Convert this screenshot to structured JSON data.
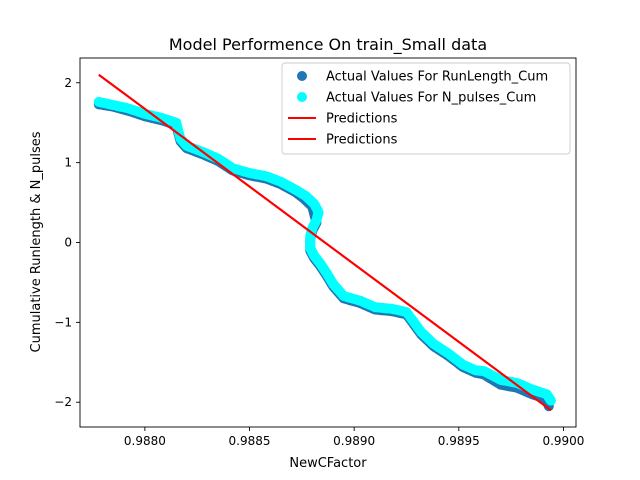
{
  "chart_data": {
    "type": "scatter",
    "title": "Model Performence On train_Small data",
    "xlabel": "NewCFactor",
    "ylabel": "Cumulative Runlength & N_pulses",
    "xlim": [
      0.98769,
      0.99006
    ],
    "ylim": [
      -2.31,
      2.31
    ],
    "xticks": [
      0.988,
      0.9885,
      0.989,
      0.9895,
      0.99
    ],
    "xtick_labels": [
      "0.9880",
      "0.9885",
      "0.9890",
      "0.9895",
      "0.9900"
    ],
    "yticks": [
      -2,
      -1,
      0,
      1,
      2
    ],
    "ytick_labels": [
      "−2",
      "−1",
      "0",
      "1",
      "2"
    ],
    "grid": false,
    "legend_position": "top-right",
    "series": [
      {
        "name": "Actual Values For RunLength_Cum",
        "kind": "scatter",
        "color": "#1f77b4",
        "x": [
          0.98778,
          0.98785,
          0.98792,
          0.988,
          0.98808,
          0.98815,
          0.98817,
          0.9882,
          0.98828,
          0.98835,
          0.98842,
          0.9885,
          0.98858,
          0.98865,
          0.98872,
          0.98876,
          0.9888,
          0.98881,
          0.98882,
          0.9888,
          0.98879,
          0.98879,
          0.98881,
          0.98884,
          0.98887,
          0.9889,
          0.98895,
          0.98903,
          0.9891,
          0.98918,
          0.98925,
          0.98932,
          0.98938,
          0.98945,
          0.98952,
          0.98958,
          0.98962,
          0.98965,
          0.9897,
          0.98978,
          0.98985,
          0.98992,
          0.98993
        ],
        "y": [
          1.73,
          1.7,
          1.65,
          1.58,
          1.53,
          1.47,
          1.27,
          1.18,
          1.1,
          1.02,
          0.9,
          0.84,
          0.8,
          0.73,
          0.63,
          0.55,
          0.45,
          0.35,
          0.25,
          0.15,
          0.05,
          -0.1,
          -0.2,
          -0.3,
          -0.42,
          -0.55,
          -0.7,
          -0.76,
          -0.84,
          -0.86,
          -0.9,
          -1.15,
          -1.3,
          -1.42,
          -1.56,
          -1.63,
          -1.65,
          -1.7,
          -1.78,
          -1.82,
          -1.9,
          -1.96,
          -2.05
        ]
      },
      {
        "name": "Actual Values For N_pulses_Cum",
        "kind": "scatter",
        "color": "#00ffff",
        "x": [
          0.98778,
          0.98785,
          0.98792,
          0.988,
          0.98808,
          0.98815,
          0.98817,
          0.9882,
          0.98828,
          0.98835,
          0.98842,
          0.9885,
          0.98858,
          0.98865,
          0.98872,
          0.98877,
          0.98881,
          0.98883,
          0.98882,
          0.9888,
          0.98879,
          0.98879,
          0.98881,
          0.98884,
          0.98887,
          0.9889,
          0.98895,
          0.98903,
          0.9891,
          0.98918,
          0.98925,
          0.98932,
          0.98938,
          0.98945,
          0.98952,
          0.98958,
          0.98962,
          0.98965,
          0.9897,
          0.98978,
          0.98985,
          0.98992,
          0.98994
        ],
        "y": [
          1.76,
          1.72,
          1.68,
          1.61,
          1.56,
          1.5,
          1.3,
          1.21,
          1.13,
          1.05,
          0.93,
          0.87,
          0.83,
          0.76,
          0.66,
          0.58,
          0.48,
          0.38,
          0.28,
          0.18,
          0.08,
          -0.07,
          -0.17,
          -0.27,
          -0.39,
          -0.52,
          -0.67,
          -0.73,
          -0.81,
          -0.83,
          -0.87,
          -1.12,
          -1.27,
          -1.39,
          -1.53,
          -1.6,
          -1.61,
          -1.65,
          -1.72,
          -1.76,
          -1.84,
          -1.9,
          -1.98
        ]
      },
      {
        "name": "Predictions",
        "kind": "line",
        "color": "#ff0000",
        "x": [
          0.98778,
          0.98994
        ],
        "y": [
          2.1,
          -2.1
        ]
      },
      {
        "name": "Predictions",
        "kind": "line",
        "color": "#ff0000",
        "x": [
          0.98778,
          0.98994
        ],
        "y": [
          2.1,
          -2.1
        ]
      }
    ]
  }
}
